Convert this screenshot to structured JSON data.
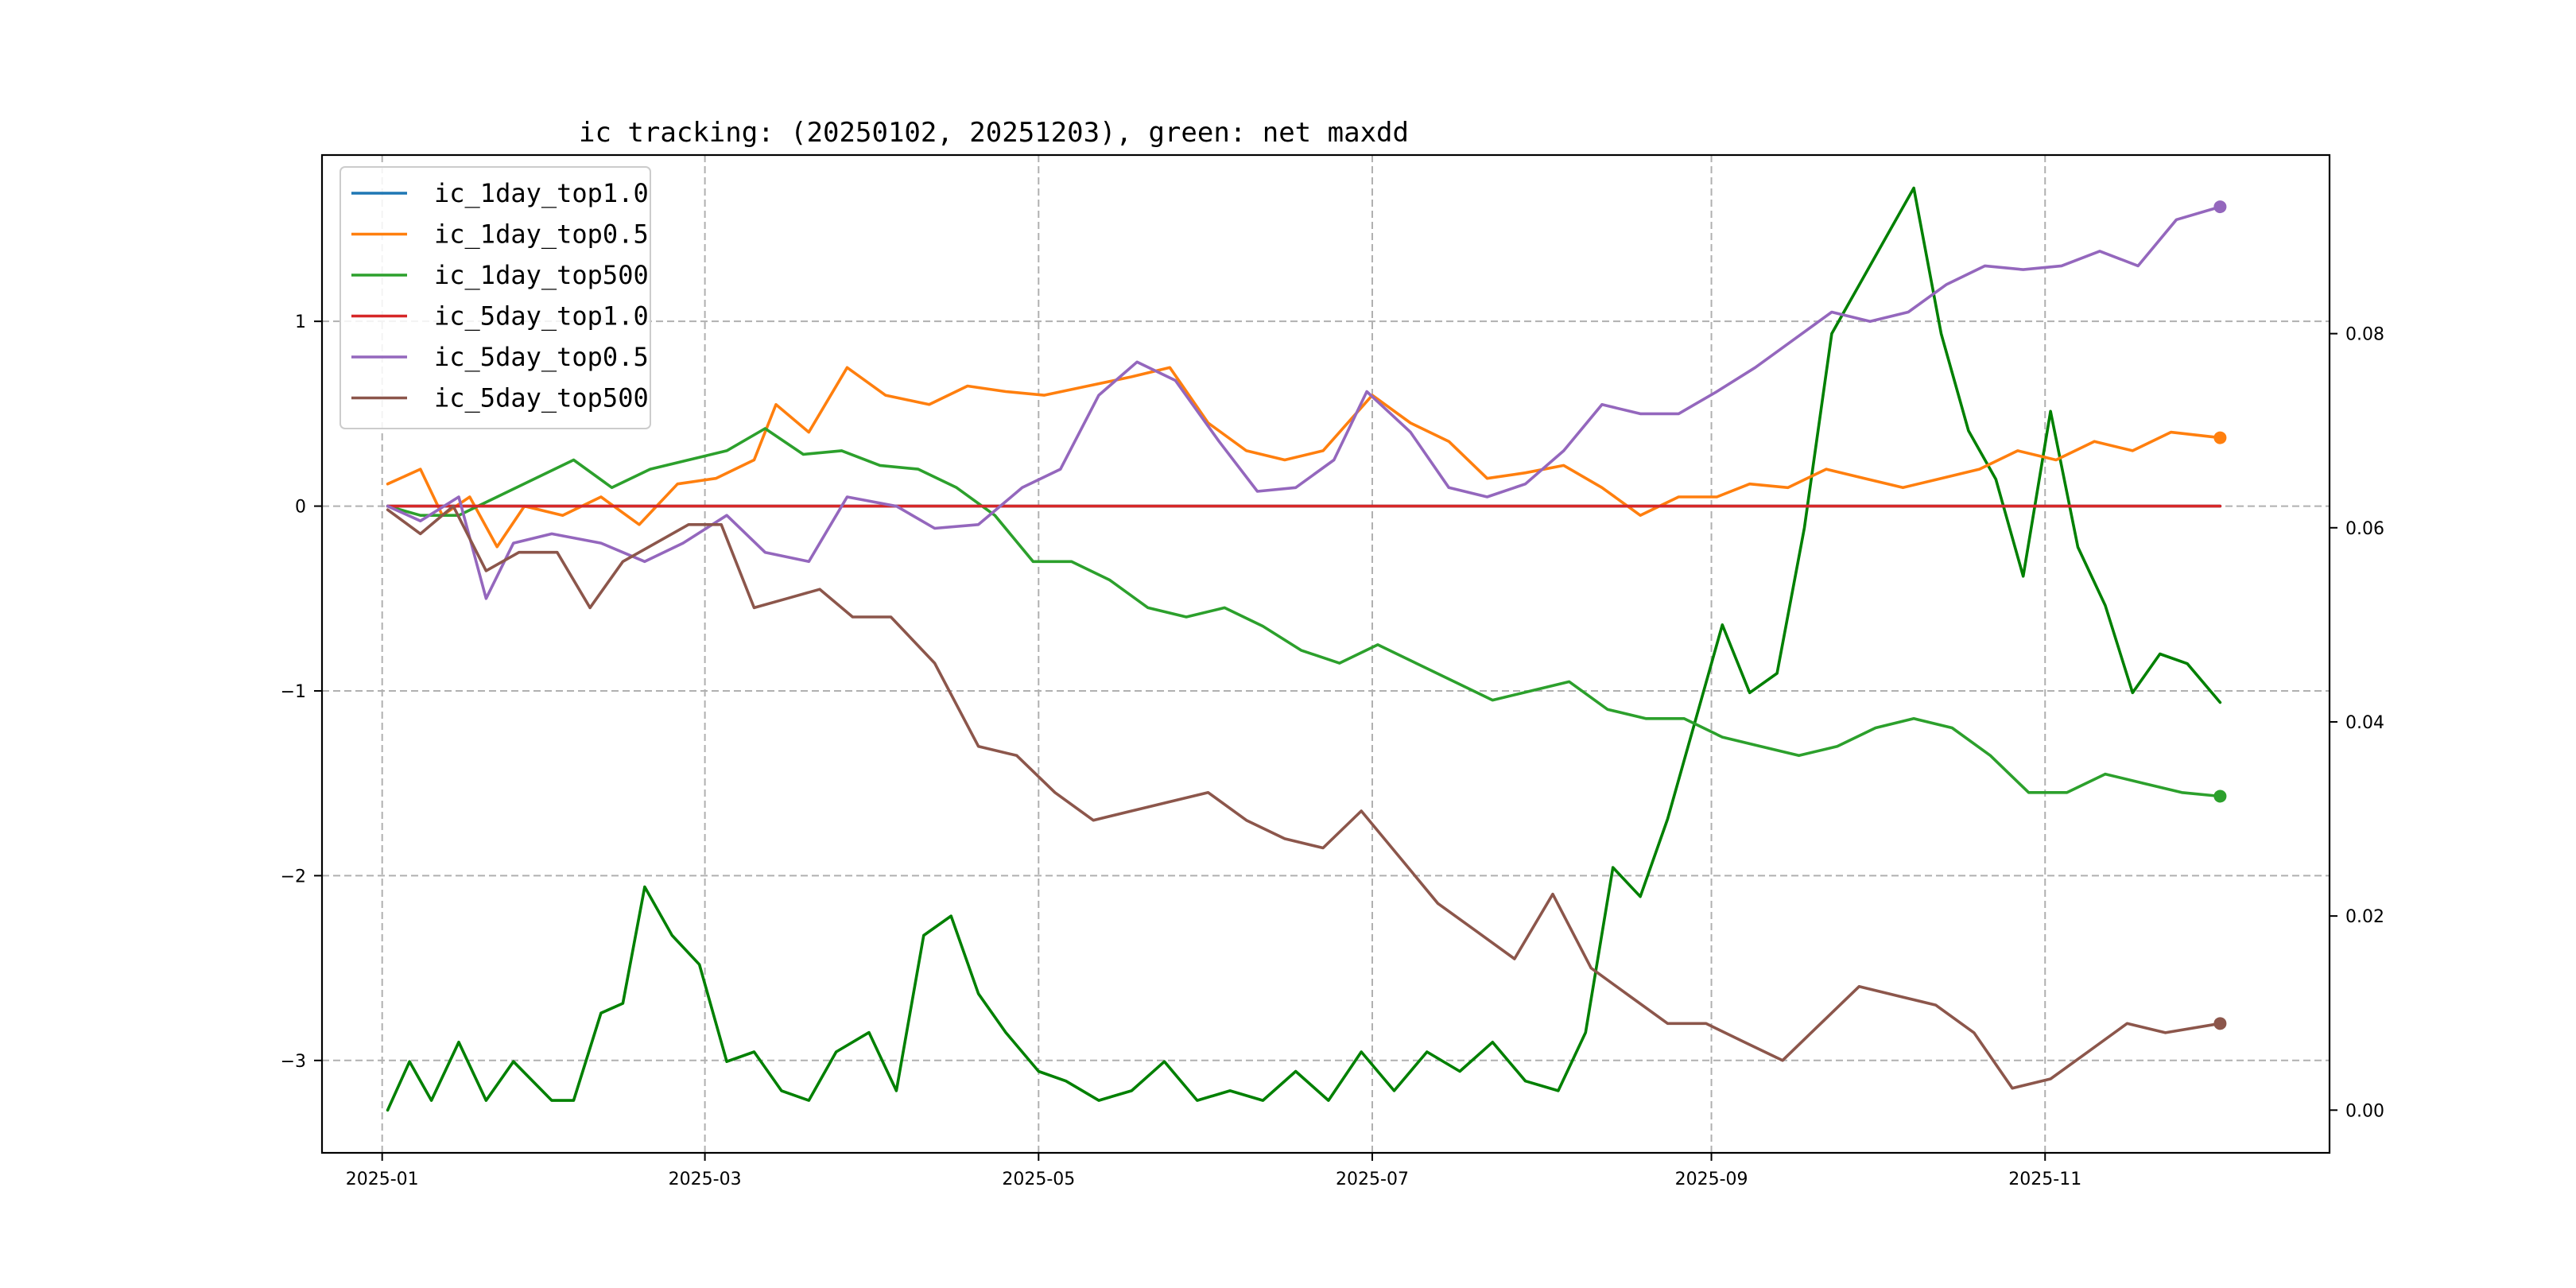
{
  "chart_data": {
    "type": "line",
    "title": "ic tracking: (20250102, 20251203), green: net maxdd",
    "xlabel": "",
    "ylabel": "",
    "xlim": [
      "2024-12-21",
      "2025-12-23"
    ],
    "ylim": [
      -3.5,
      1.9
    ],
    "y2lim": [
      -0.0044,
      0.0984
    ],
    "x_ticks": [
      "2025-01",
      "2025-03",
      "2025-05",
      "2025-07",
      "2025-09",
      "2025-11"
    ],
    "y_ticks": [
      1,
      0,
      -1,
      -2,
      -3
    ],
    "y_tick_labels": [
      "1",
      "0",
      "−1",
      "−2",
      "−3"
    ],
    "y2_ticks": [
      0.08,
      0.06,
      0.04,
      0.02,
      0.0
    ],
    "y2_tick_labels": [
      "0.08",
      "0.06",
      "0.04",
      "0.02",
      "0.00"
    ],
    "grid": true,
    "legend_position": "top-left",
    "series": [
      {
        "name": "ic_1day_top1.0",
        "color": "#1f77b4",
        "axis": "left",
        "x": [
          "2025-01-02",
          "2025-12-03"
        ],
        "y": [
          0.0,
          0.0
        ]
      },
      {
        "name": "ic_1day_top0.5",
        "color": "#ff7f0e",
        "axis": "left",
        "x": [
          "2025-01-02",
          "2025-01-08",
          "2025-01-12",
          "2025-01-17",
          "2025-01-22",
          "2025-01-27",
          "2025-02-03",
          "2025-02-10",
          "2025-02-17",
          "2025-02-24",
          "2025-03-03",
          "2025-03-10",
          "2025-03-14",
          "2025-03-20",
          "2025-03-27",
          "2025-04-03",
          "2025-04-11",
          "2025-04-18",
          "2025-04-25",
          "2025-05-02",
          "2025-05-10",
          "2025-05-18",
          "2025-05-25",
          "2025-06-01",
          "2025-06-08",
          "2025-06-15",
          "2025-06-22",
          "2025-07-01",
          "2025-07-08",
          "2025-07-15",
          "2025-07-22",
          "2025-07-29",
          "2025-08-05",
          "2025-08-12",
          "2025-08-19",
          "2025-08-26",
          "2025-09-02",
          "2025-09-08",
          "2025-09-15",
          "2025-09-22",
          "2025-09-29",
          "2025-10-06",
          "2025-10-13",
          "2025-10-20",
          "2025-10-27",
          "2025-11-03",
          "2025-11-10",
          "2025-11-17",
          "2025-11-24",
          "2025-12-03"
        ],
        "y": [
          0.12,
          0.2,
          -0.05,
          0.05,
          -0.22,
          0.0,
          -0.05,
          0.05,
          -0.1,
          0.12,
          0.15,
          0.25,
          0.55,
          0.4,
          0.75,
          0.6,
          0.55,
          0.65,
          0.62,
          0.6,
          0.65,
          0.7,
          0.75,
          0.45,
          0.3,
          0.25,
          0.3,
          0.6,
          0.45,
          0.35,
          0.15,
          0.18,
          0.22,
          0.1,
          -0.05,
          0.05,
          0.05,
          0.12,
          0.1,
          0.2,
          0.15,
          0.1,
          0.15,
          0.2,
          0.3,
          0.25,
          0.35,
          0.3,
          0.4,
          0.37
        ]
      },
      {
        "name": "ic_1day_top500",
        "color": "#2ca02c",
        "axis": "left",
        "x": [
          "2025-01-02",
          "2025-01-08",
          "2025-01-15",
          "2025-01-22",
          "2025-01-29",
          "2025-02-05",
          "2025-02-12",
          "2025-02-19",
          "2025-02-26",
          "2025-03-05",
          "2025-03-12",
          "2025-03-19",
          "2025-03-26",
          "2025-04-02",
          "2025-04-09",
          "2025-04-16",
          "2025-04-23",
          "2025-04-30",
          "2025-05-07",
          "2025-05-14",
          "2025-05-21",
          "2025-05-28",
          "2025-06-04",
          "2025-06-11",
          "2025-06-18",
          "2025-06-25",
          "2025-07-02",
          "2025-07-09",
          "2025-07-16",
          "2025-07-23",
          "2025-07-30",
          "2025-08-06",
          "2025-08-13",
          "2025-08-20",
          "2025-08-27",
          "2025-09-03",
          "2025-09-10",
          "2025-09-17",
          "2025-09-24",
          "2025-10-01",
          "2025-10-08",
          "2025-10-15",
          "2025-10-22",
          "2025-10-29",
          "2025-11-05",
          "2025-11-12",
          "2025-11-19",
          "2025-11-26",
          "2025-12-03"
        ],
        "y": [
          0.0,
          -0.05,
          -0.05,
          0.05,
          0.15,
          0.25,
          0.1,
          0.2,
          0.25,
          0.3,
          0.42,
          0.28,
          0.3,
          0.22,
          0.2,
          0.1,
          -0.05,
          -0.3,
          -0.3,
          -0.4,
          -0.55,
          -0.6,
          -0.55,
          -0.65,
          -0.78,
          -0.85,
          -0.75,
          -0.85,
          -0.95,
          -1.05,
          -1.0,
          -0.95,
          -1.1,
          -1.15,
          -1.15,
          -1.25,
          -1.3,
          -1.35,
          -1.3,
          -1.2,
          -1.15,
          -1.2,
          -1.35,
          -1.55,
          -1.55,
          -1.45,
          -1.5,
          -1.55,
          -1.57
        ]
      },
      {
        "name": "ic_5day_top1.0",
        "color": "#d62728",
        "axis": "left",
        "x": [
          "2025-01-02",
          "2025-12-03"
        ],
        "y": [
          0.0,
          0.0
        ]
      },
      {
        "name": "ic_5day_top0.5",
        "color": "#9467bd",
        "axis": "left",
        "x": [
          "2025-01-02",
          "2025-01-08",
          "2025-01-15",
          "2025-01-20",
          "2025-01-25",
          "2025-02-01",
          "2025-02-10",
          "2025-02-18",
          "2025-02-25",
          "2025-03-05",
          "2025-03-12",
          "2025-03-20",
          "2025-03-27",
          "2025-04-05",
          "2025-04-12",
          "2025-04-20",
          "2025-04-28",
          "2025-05-05",
          "2025-05-12",
          "2025-05-19",
          "2025-05-26",
          "2025-06-03",
          "2025-06-10",
          "2025-06-17",
          "2025-06-24",
          "2025-06-30",
          "2025-07-08",
          "2025-07-15",
          "2025-07-22",
          "2025-07-29",
          "2025-08-05",
          "2025-08-12",
          "2025-08-19",
          "2025-08-26",
          "2025-09-02",
          "2025-09-09",
          "2025-09-16",
          "2025-09-23",
          "2025-09-30",
          "2025-10-07",
          "2025-10-14",
          "2025-10-21",
          "2025-10-28",
          "2025-11-04",
          "2025-11-11",
          "2025-11-18",
          "2025-11-25",
          "2025-12-03"
        ],
        "y": [
          0.0,
          -0.08,
          0.05,
          -0.5,
          -0.2,
          -0.15,
          -0.2,
          -0.3,
          -0.2,
          -0.05,
          -0.25,
          -0.3,
          0.05,
          0.0,
          -0.12,
          -0.1,
          0.1,
          0.2,
          0.6,
          0.78,
          0.68,
          0.35,
          0.08,
          0.1,
          0.25,
          0.62,
          0.4,
          0.1,
          0.05,
          0.12,
          0.3,
          0.55,
          0.5,
          0.5,
          0.62,
          0.75,
          0.9,
          1.05,
          1.0,
          1.05,
          1.2,
          1.3,
          1.28,
          1.3,
          1.38,
          1.3,
          1.55,
          1.62
        ]
      },
      {
        "name": "ic_5day_top500",
        "color": "#8c564b",
        "axis": "left",
        "x": [
          "2025-01-02",
          "2025-01-08",
          "2025-01-14",
          "2025-01-20",
          "2025-01-26",
          "2025-02-02",
          "2025-02-08",
          "2025-02-14",
          "2025-02-20",
          "2025-02-26",
          "2025-03-04",
          "2025-03-10",
          "2025-03-16",
          "2025-03-22",
          "2025-03-28",
          "2025-04-04",
          "2025-04-12",
          "2025-04-20",
          "2025-04-27",
          "2025-05-04",
          "2025-05-11",
          "2025-05-18",
          "2025-05-25",
          "2025-06-01",
          "2025-06-08",
          "2025-06-15",
          "2025-06-22",
          "2025-06-29",
          "2025-07-06",
          "2025-07-13",
          "2025-07-20",
          "2025-07-27",
          "2025-08-03",
          "2025-08-10",
          "2025-08-17",
          "2025-08-24",
          "2025-08-31",
          "2025-09-07",
          "2025-09-14",
          "2025-09-21",
          "2025-09-28",
          "2025-10-05",
          "2025-10-12",
          "2025-10-19",
          "2025-10-26",
          "2025-11-02",
          "2025-11-09",
          "2025-11-16",
          "2025-11-23",
          "2025-12-03"
        ],
        "y": [
          -0.02,
          -0.15,
          0.0,
          -0.35,
          -0.25,
          -0.25,
          -0.55,
          -0.3,
          -0.2,
          -0.1,
          -0.1,
          -0.55,
          -0.5,
          -0.45,
          -0.6,
          -0.6,
          -0.85,
          -1.3,
          -1.35,
          -1.55,
          -1.7,
          -1.65,
          -1.6,
          -1.55,
          -1.7,
          -1.8,
          -1.85,
          -1.65,
          -1.9,
          -2.15,
          -2.3,
          -2.45,
          -2.1,
          -2.5,
          -2.65,
          -2.8,
          -2.8,
          -2.9,
          -3.0,
          -2.8,
          -2.6,
          -2.65,
          -2.7,
          -2.85,
          -3.15,
          -3.1,
          -2.95,
          -2.8,
          -2.85,
          -2.8
        ]
      },
      {
        "name": "net maxdd",
        "color": "#008000",
        "axis": "right",
        "x": [
          "2025-01-02",
          "2025-01-06",
          "2025-01-10",
          "2025-01-15",
          "2025-01-20",
          "2025-01-25",
          "2025-02-01",
          "2025-02-05",
          "2025-02-10",
          "2025-02-14",
          "2025-02-18",
          "2025-02-23",
          "2025-02-28",
          "2025-03-05",
          "2025-03-10",
          "2025-03-15",
          "2025-03-20",
          "2025-03-25",
          "2025-03-31",
          "2025-04-05",
          "2025-04-10",
          "2025-04-15",
          "2025-04-20",
          "2025-04-25",
          "2025-05-01",
          "2025-05-06",
          "2025-05-12",
          "2025-05-18",
          "2025-05-24",
          "2025-05-30",
          "2025-06-05",
          "2025-06-11",
          "2025-06-17",
          "2025-06-23",
          "2025-06-29",
          "2025-07-05",
          "2025-07-11",
          "2025-07-17",
          "2025-07-23",
          "2025-07-29",
          "2025-08-04",
          "2025-08-09",
          "2025-08-14",
          "2025-08-19",
          "2025-08-24",
          "2025-08-29",
          "2025-09-03",
          "2025-09-08",
          "2025-09-13",
          "2025-09-18",
          "2025-09-23",
          "2025-09-28",
          "2025-10-03",
          "2025-10-08",
          "2025-10-13",
          "2025-10-18",
          "2025-10-23",
          "2025-10-28",
          "2025-11-02",
          "2025-11-07",
          "2025-11-12",
          "2025-11-17",
          "2025-11-22",
          "2025-11-27",
          "2025-12-03"
        ],
        "y": [
          0.0,
          0.005,
          0.001,
          0.007,
          0.001,
          0.005,
          0.001,
          0.001,
          0.01,
          0.011,
          0.023,
          0.018,
          0.015,
          0.005,
          0.006,
          0.002,
          0.001,
          0.006,
          0.008,
          0.002,
          0.018,
          0.02,
          0.012,
          0.008,
          0.004,
          0.003,
          0.001,
          0.002,
          0.005,
          0.001,
          0.002,
          0.001,
          0.004,
          0.001,
          0.006,
          0.002,
          0.006,
          0.004,
          0.007,
          0.003,
          0.002,
          0.008,
          0.025,
          0.022,
          0.03,
          0.04,
          0.05,
          0.043,
          0.045,
          0.06,
          0.08,
          0.085,
          0.09,
          0.095,
          0.08,
          0.07,
          0.065,
          0.055,
          0.072,
          0.058,
          0.052,
          0.043,
          0.047,
          0.046,
          0.042
        ]
      }
    ]
  }
}
